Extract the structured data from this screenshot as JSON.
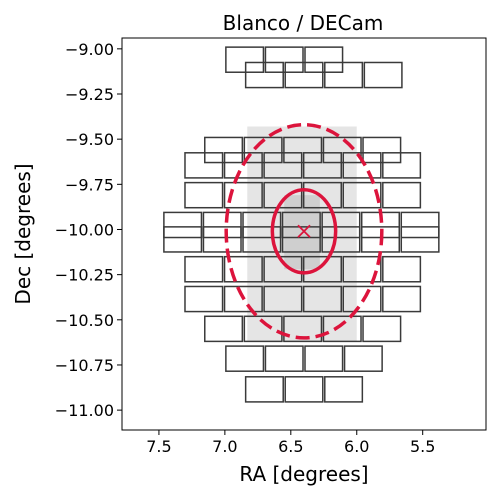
{
  "chart_data": {
    "type": "scatter",
    "title": "Blanco / DECam",
    "xlabel": "RA [degrees]",
    "ylabel": "Dec [degrees]",
    "xlim": [
      7.78,
      5.02
    ],
    "ylim": [
      -11.11,
      -8.94
    ],
    "x_inverted": true,
    "xticks": [
      7.5,
      7.0,
      6.5,
      6.0,
      5.5
    ],
    "xtick_labels": [
      "7.5",
      "7.0",
      "6.5",
      "6.0",
      "5.5"
    ],
    "yticks": [
      -9.0,
      -9.25,
      -9.5,
      -9.75,
      -10.0,
      -10.25,
      -10.5,
      -10.75,
      -11.0
    ],
    "ytick_labels": [
      "−9.00",
      "−9.25",
      "−9.50",
      "−9.75",
      "−10.00",
      "−10.25",
      "−10.50",
      "−10.75",
      "−11.00"
    ],
    "grid": false,
    "center": {
      "ra": 6.4,
      "dec": -10.01,
      "marker": "x",
      "color": "#dc143c"
    },
    "ellipses": [
      {
        "ra": 6.4,
        "dec": -10.01,
        "half_width_ra": 0.24,
        "half_height_dec": 0.23,
        "style": "solid",
        "color": "#dc143c"
      },
      {
        "ra": 6.4,
        "dec": -10.01,
        "half_width_ra": 0.59,
        "half_height_dec": 0.59,
        "style": "dashed",
        "color": "#dc143c"
      }
    ],
    "ccd_size": {
      "ra": 0.3,
      "dec": 0.15
    },
    "ccd_rows": [
      {
        "dec": -9.06,
        "ra_left": 7.0,
        "count": 3
      },
      {
        "dec": -9.145,
        "ra_left": 6.85,
        "count": 4
      },
      {
        "dec": -9.56,
        "ra_left": 7.16,
        "count": 5
      },
      {
        "dec": -9.645,
        "ra_left": 7.31,
        "count": 6
      },
      {
        "dec": -9.81,
        "ra_left": 7.31,
        "count": 6
      },
      {
        "dec": -9.975,
        "ra_left": 7.47,
        "count": 7
      },
      {
        "dec": -10.055,
        "ra_left": 7.47,
        "count": 7
      },
      {
        "dec": -10.22,
        "ra_left": 7.31,
        "count": 6
      },
      {
        "dec": -10.385,
        "ra_left": 7.31,
        "count": 6
      },
      {
        "dec": -10.55,
        "ra_left": 7.16,
        "count": 5
      },
      {
        "dec": -10.715,
        "ra_left": 7.0,
        "count": 4
      },
      {
        "dec": -10.885,
        "ra_left": 6.85,
        "count": 3
      }
    ],
    "shading": [
      {
        "level": "light",
        "color": "#e5e5e5",
        "ra_min": 6.0,
        "ra_max": 6.83,
        "dec_min": -10.62,
        "dec_max": -9.43
      },
      {
        "level": "medium",
        "color": "#cfcfcf",
        "ra_min": 6.28,
        "ra_max": 6.55,
        "dec_min": -10.22,
        "dec_max": -9.81
      }
    ],
    "colors": {
      "ccd_edge": "#3a3a3a",
      "ccd_fill": "#ffffff",
      "accent": "#dc143c"
    }
  }
}
